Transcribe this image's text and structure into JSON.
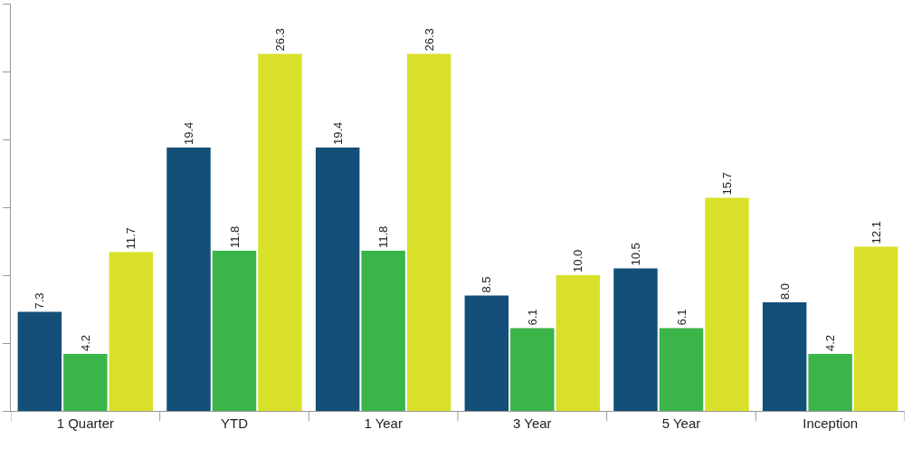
{
  "chart_data": {
    "type": "bar",
    "categories": [
      "1 Quarter",
      "YTD",
      "1 Year",
      "3 Year",
      "5 Year",
      "Inception"
    ],
    "series": [
      {
        "color": "#134f78",
        "values": [
          7.3,
          19.4,
          19.4,
          8.5,
          10.5,
          8.0
        ],
        "value_labels": [
          "7.3",
          "19.4",
          "19.4",
          "8.5",
          "10.5",
          "8.0"
        ]
      },
      {
        "color": "#3bb54a",
        "values": [
          4.2,
          11.8,
          11.8,
          6.1,
          6.1,
          4.2
        ],
        "value_labels": [
          "4.2",
          "11.8",
          "11.8",
          "6.1",
          "6.1",
          "4.2"
        ]
      },
      {
        "color": "#d9e02a",
        "values": [
          11.7,
          26.3,
          26.3,
          10.0,
          15.7,
          12.1
        ],
        "value_labels": [
          "11.7",
          "26.3",
          "26.3",
          "10.0",
          "15.7",
          "12.1"
        ]
      }
    ],
    "ylim": [
      0,
      30
    ],
    "yticks": [
      {
        "value": 0,
        "label": null
      },
      {
        "value": 5,
        "label": null
      },
      {
        "value": 10,
        "label": null
      },
      {
        "value": 15,
        "label": null
      },
      {
        "value": 20,
        "label": null
      },
      {
        "value": 25,
        "label": null
      },
      {
        "value": 30,
        "label": null
      }
    ],
    "tick_labels": "x"
  }
}
